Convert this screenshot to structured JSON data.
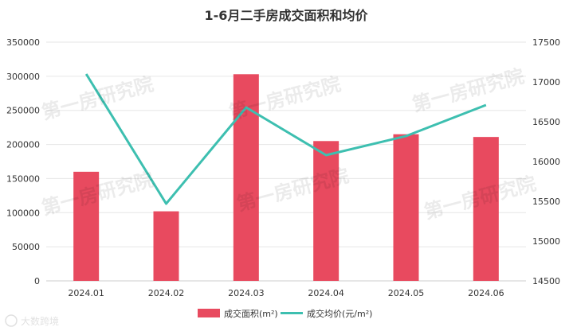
{
  "watermark": "第一房研究院",
  "logo_text": "大数跨境",
  "chart_data": {
    "type": "bar+line",
    "title": "1-6月二手房成交面积和均价",
    "categories": [
      "2024.01",
      "2024.02",
      "2024.03",
      "2024.04",
      "2024.05",
      "2024.06"
    ],
    "series": [
      {
        "name": "成交面积(m²)",
        "type": "bar",
        "axis": "left",
        "color": "#e84a5f",
        "values": [
          160000,
          102000,
          303000,
          205000,
          215000,
          211000
        ]
      },
      {
        "name": "成交均价(元/m²)",
        "type": "line",
        "axis": "right",
        "color": "#3dbfb0",
        "values": [
          17100,
          15470,
          16680,
          16080,
          16320,
          16710
        ]
      }
    ],
    "y_left": {
      "min": 0,
      "max": 350000,
      "step": 50000,
      "ticks": [
        "0",
        "50000",
        "100000",
        "150000",
        "200000",
        "250000",
        "300000",
        "350000"
      ]
    },
    "y_right": {
      "min": 14500,
      "max": 17500,
      "step": 500,
      "ticks": [
        "14500",
        "15000",
        "15500",
        "16000",
        "16500",
        "17000",
        "17500"
      ]
    },
    "grid": true,
    "legend_position": "bottom"
  }
}
